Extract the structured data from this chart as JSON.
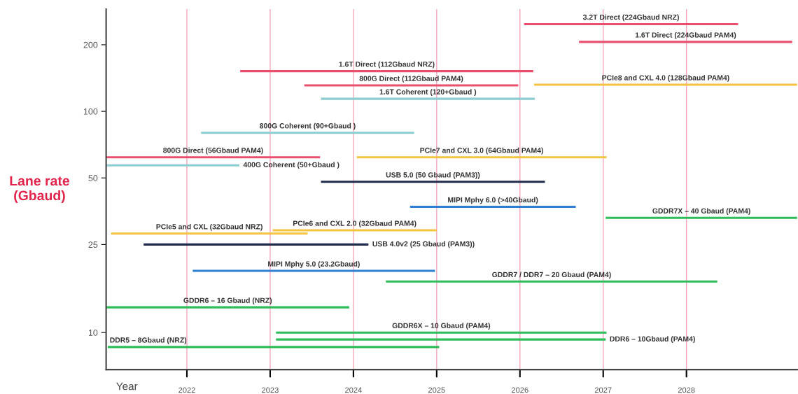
{
  "chart_data": {
    "type": "line",
    "ylabel": "Lane rate\n(Gbaud)",
    "xlabel": "Year",
    "log": true,
    "grid": "x",
    "xlim": [
      2021.03,
      2029.33
    ],
    "xticks": [
      2022,
      2023,
      2024,
      2025,
      2026,
      2027,
      2028
    ],
    "ylim": [
      6.8,
      290
    ],
    "yticks": [
      10,
      25,
      50,
      100,
      200
    ],
    "series": [
      {
        "name": "3.2T Direct (224Gbaud NRZ)",
        "color": "#e8506e",
        "x": [
          2026.05,
          2028.62
        ],
        "values": [
          248,
          248
        ]
      },
      {
        "name": "1.6T Direct (224Gbaud PAM4)",
        "color": "#e8506e",
        "x": [
          2026.71,
          2029.27
        ],
        "values": [
          206,
          206
        ]
      },
      {
        "name": "1.6T Direct (112Gbaud NRZ)",
        "color": "#e8506e",
        "x": [
          2022.64,
          2026.16
        ],
        "values": [
          152,
          152
        ]
      },
      {
        "name": "800G Direct (112Gbaud PAM4)",
        "color": "#e8506e",
        "x": [
          2023.41,
          2025.98
        ],
        "values": [
          131,
          131
        ]
      },
      {
        "name": "1.6T Coherent (120+Gbaud )",
        "color": "#8ccbd0",
        "x": [
          2023.61,
          2026.18
        ],
        "values": [
          114,
          114
        ]
      },
      {
        "name": "PCIe8 and CXL 4.0 (128Gbaud PAM4)",
        "color": "#f5c342",
        "x": [
          2026.17,
          2029.33
        ],
        "values": [
          132,
          132
        ]
      },
      {
        "name": "800G Coherent (90+Gbaud )",
        "color": "#8ccbd0",
        "x": [
          2022.17,
          2024.73
        ],
        "values": [
          80,
          80
        ]
      },
      {
        "name": "800G Direct (56Gbaud PAM4)",
        "color": "#e8506e",
        "x": [
          2021.03,
          2023.6
        ],
        "values": [
          62,
          62
        ]
      },
      {
        "name": "400G Coherent (50+Gbaud )",
        "color": "#8ccbd0",
        "x": [
          2021.03,
          2022.63
        ],
        "values": [
          57,
          57
        ]
      },
      {
        "name": "PCIe7 and CXL 3.0 (64Gbaud PAM4)",
        "color": "#f5c342",
        "x": [
          2024.04,
          2027.04
        ],
        "values": [
          62,
          62
        ]
      },
      {
        "name": "USB 5.0 (50 Gbaud (PAM3))",
        "color": "#1f2a4d",
        "x": [
          2023.61,
          2026.3
        ],
        "values": [
          48,
          48
        ]
      },
      {
        "name": "MIPI Mphy 6.0 (>40Gbaud)",
        "color": "#2f7fd0",
        "x": [
          2024.68,
          2026.67
        ],
        "values": [
          37,
          37
        ]
      },
      {
        "name": "GDDR7X – 40 Gbaud (PAM4)",
        "color": "#2ebd59",
        "x": [
          2027.03,
          2029.33
        ],
        "values": [
          33,
          33
        ]
      },
      {
        "name": "PCIe5 and CXL (32Gbaud NRZ)",
        "color": "#f5c342",
        "x": [
          2021.09,
          2023.45
        ],
        "values": [
          28,
          28
        ]
      },
      {
        "name": "PCIe6 and CXL 2.0 (32Gbaud PAM4)",
        "color": "#f5c342",
        "x": [
          2023.03,
          2025.0
        ],
        "values": [
          29,
          29
        ]
      },
      {
        "name": "USB 4.0v2 (25 Gbaud (PAM3))",
        "color": "#1f2a4d",
        "x": [
          2021.48,
          2024.18
        ],
        "values": [
          25,
          25
        ]
      },
      {
        "name": "MIPI Mphy 5.0 (23.2Gbaud)",
        "color": "#2f7fd0",
        "x": [
          2022.07,
          2024.98
        ],
        "values": [
          19,
          19
        ]
      },
      {
        "name": "GDDR7 / DDR7 – 20 Gbaud (PAM4)",
        "color": "#2ebd59",
        "x": [
          2024.39,
          2028.37
        ],
        "values": [
          17,
          17
        ]
      },
      {
        "name": "GDDR6 – 16 Gbaud (NRZ)",
        "color": "#2ebd59",
        "x": [
          2021.03,
          2023.95
        ],
        "values": [
          13,
          13
        ]
      },
      {
        "name": "GDDR6X – 10 Gbaud (PAM4)",
        "color": "#2ebd59",
        "x": [
          2023.07,
          2027.04
        ],
        "values": [
          10,
          10
        ]
      },
      {
        "name": "DDR6 – 10Gbaud (PAM4)",
        "color": "#2ebd59",
        "x": [
          2023.07,
          2027.03
        ],
        "values": [
          9.3,
          9.3
        ]
      },
      {
        "name": "DDR5 – 8Gbaud (NRZ)",
        "color": "#2ebd59",
        "x": [
          2021.05,
          2025.03
        ],
        "values": [
          8.6,
          8.6
        ]
      }
    ]
  }
}
